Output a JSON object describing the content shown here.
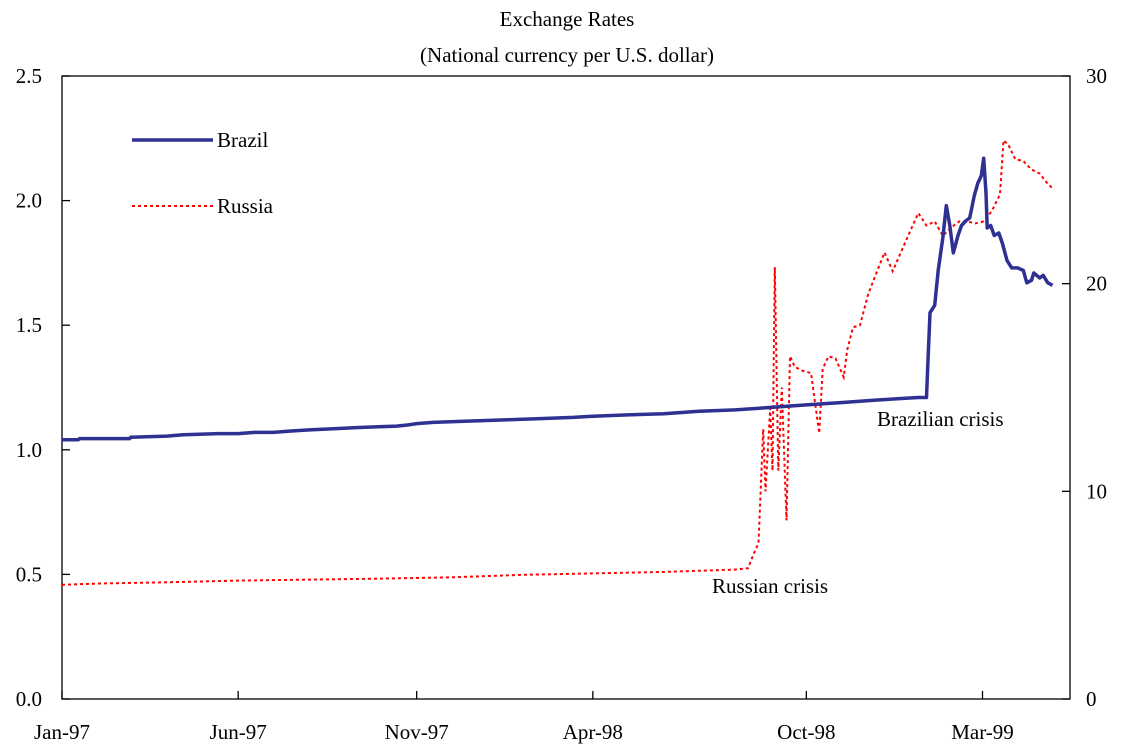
{
  "chart_data": {
    "type": "line",
    "title": "Exchange Rates",
    "subtitle": "(National currency per U.S. dollar)",
    "x_tick_labels": [
      "Jan-97",
      "Jun-97",
      "Nov-97",
      "Apr-98",
      "Oct-98",
      "Mar-99"
    ],
    "x_ticks": [
      "1997-01-01",
      "1997-06-01",
      "1997-11-01",
      "1998-04-01",
      "1998-10-01",
      "1999-03-01"
    ],
    "xlim": [
      "1997-01-01",
      "1999-05-15"
    ],
    "y_left": {
      "ylim": [
        0,
        2.5
      ],
      "ticks": [
        0.0,
        0.5,
        1.0,
        1.5,
        2.0,
        2.5
      ],
      "tick_labels": [
        "0.0",
        "0.5",
        "1.0",
        "1.5",
        "2.0",
        "2.5"
      ]
    },
    "y_right": {
      "ylim": [
        0,
        30
      ],
      "ticks": [
        0,
        10,
        20,
        30
      ],
      "tick_labels": [
        "0",
        "10",
        "20",
        "30"
      ]
    },
    "legend_position": "upper-left, inside plot",
    "series": [
      {
        "name": "Brazil",
        "axis": "left",
        "style": "solid",
        "color": "#2e3192",
        "points": [
          [
            "1997-01-01",
            1.04
          ],
          [
            "1997-01-15",
            1.04
          ],
          [
            "1997-01-16",
            1.045
          ],
          [
            "1997-02-28",
            1.045
          ],
          [
            "1997-03-01",
            1.05
          ],
          [
            "1997-04-01",
            1.055
          ],
          [
            "1997-04-15",
            1.06
          ],
          [
            "1997-05-15",
            1.065
          ],
          [
            "1997-06-01",
            1.065
          ],
          [
            "1997-06-15",
            1.07
          ],
          [
            "1997-07-01",
            1.07
          ],
          [
            "1997-07-15",
            1.075
          ],
          [
            "1997-08-01",
            1.08
          ],
          [
            "1997-08-15",
            1.083
          ],
          [
            "1997-09-15",
            1.09
          ],
          [
            "1997-10-15",
            1.095
          ],
          [
            "1997-10-25",
            1.1
          ],
          [
            "1997-11-01",
            1.105
          ],
          [
            "1997-11-15",
            1.11
          ],
          [
            "1997-12-15",
            1.115
          ],
          [
            "1998-01-15",
            1.12
          ],
          [
            "1998-02-15",
            1.125
          ],
          [
            "1998-03-15",
            1.13
          ],
          [
            "1998-04-01",
            1.135
          ],
          [
            "1998-05-01",
            1.14
          ],
          [
            "1998-06-01",
            1.145
          ],
          [
            "1998-07-01",
            1.155
          ],
          [
            "1998-08-01",
            1.16
          ],
          [
            "1998-09-01",
            1.17
          ],
          [
            "1998-10-01",
            1.18
          ],
          [
            "1998-11-01",
            1.19
          ],
          [
            "1998-12-01",
            1.2
          ],
          [
            "1999-01-05",
            1.21
          ],
          [
            "1999-01-12",
            1.21
          ],
          [
            "1999-01-13",
            1.33
          ],
          [
            "1999-01-15",
            1.55
          ],
          [
            "1999-01-19",
            1.58
          ],
          [
            "1999-01-22",
            1.72
          ],
          [
            "1999-01-26",
            1.85
          ],
          [
            "1999-01-29",
            1.98
          ],
          [
            "1999-02-01",
            1.9
          ],
          [
            "1999-02-04",
            1.79
          ],
          [
            "1999-02-08",
            1.86
          ],
          [
            "1999-02-11",
            1.9
          ],
          [
            "1999-02-15",
            1.92
          ],
          [
            "1999-02-18",
            1.93
          ],
          [
            "1999-02-22",
            2.02
          ],
          [
            "1999-02-25",
            2.07
          ],
          [
            "1999-02-28",
            2.1
          ],
          [
            "1999-03-02",
            2.17
          ],
          [
            "1999-03-04",
            2.03
          ],
          [
            "1999-03-05",
            1.89
          ],
          [
            "1999-03-08",
            1.9
          ],
          [
            "1999-03-11",
            1.86
          ],
          [
            "1999-03-15",
            1.87
          ],
          [
            "1999-03-18",
            1.83
          ],
          [
            "1999-03-22",
            1.76
          ],
          [
            "1999-03-26",
            1.73
          ],
          [
            "1999-03-31",
            1.73
          ],
          [
            "1999-04-05",
            1.72
          ],
          [
            "1999-04-08",
            1.67
          ],
          [
            "1999-04-12",
            1.68
          ],
          [
            "1999-04-14",
            1.71
          ],
          [
            "1999-04-19",
            1.69
          ],
          [
            "1999-04-22",
            1.7
          ],
          [
            "1999-04-26",
            1.67
          ],
          [
            "1999-04-30",
            1.66
          ]
        ]
      },
      {
        "name": "Russia",
        "axis": "right",
        "style": "dotted",
        "color": "#ff0000",
        "points": [
          [
            "1997-01-01",
            5.5
          ],
          [
            "1997-02-01",
            5.56
          ],
          [
            "1997-04-01",
            5.62
          ],
          [
            "1997-06-01",
            5.7
          ],
          [
            "1997-08-01",
            5.75
          ],
          [
            "1997-10-01",
            5.8
          ],
          [
            "1997-12-01",
            5.86
          ],
          [
            "1998-02-01",
            5.98
          ],
          [
            "1998-04-01",
            6.05
          ],
          [
            "1998-06-01",
            6.12
          ],
          [
            "1998-08-01",
            6.23
          ],
          [
            "1998-08-12",
            6.3
          ],
          [
            "1998-08-17",
            7.0
          ],
          [
            "1998-08-21",
            7.5
          ],
          [
            "1998-08-25",
            13.0
          ],
          [
            "1998-08-27",
            10.0
          ],
          [
            "1998-08-31",
            14.0
          ],
          [
            "1998-09-02",
            11.0
          ],
          [
            "1998-09-04",
            20.8
          ],
          [
            "1998-09-07",
            11.0
          ],
          [
            "1998-09-10",
            15.0
          ],
          [
            "1998-09-14",
            8.6
          ],
          [
            "1998-09-17",
            16.5
          ],
          [
            "1998-09-21",
            16.0
          ],
          [
            "1998-09-28",
            15.8
          ],
          [
            "1998-10-05",
            15.7
          ],
          [
            "1998-10-12",
            12.8
          ],
          [
            "1998-10-15",
            15.9
          ],
          [
            "1998-10-20",
            16.5
          ],
          [
            "1998-10-26",
            16.4
          ],
          [
            "1998-11-02",
            15.5
          ],
          [
            "1998-11-05",
            16.8
          ],
          [
            "1998-11-10",
            17.9
          ],
          [
            "1998-11-16",
            18.0
          ],
          [
            "1998-11-23",
            19.5
          ],
          [
            "1998-11-30",
            20.5
          ],
          [
            "1998-12-07",
            21.5
          ],
          [
            "1998-12-14",
            20.6
          ],
          [
            "1998-12-21",
            21.5
          ],
          [
            "1998-12-28",
            22.4
          ],
          [
            "1999-01-05",
            23.4
          ],
          [
            "1999-01-12",
            22.8
          ],
          [
            "1999-01-19",
            23.0
          ],
          [
            "1999-01-26",
            22.3
          ],
          [
            "1999-02-02",
            22.7
          ],
          [
            "1999-02-09",
            23.0
          ],
          [
            "1999-02-16",
            23.0
          ],
          [
            "1999-02-23",
            22.9
          ],
          [
            "1999-03-02",
            23.0
          ],
          [
            "1999-03-09",
            23.5
          ],
          [
            "1999-03-16",
            24.3
          ],
          [
            "1999-03-19",
            26.9
          ],
          [
            "1999-03-23",
            26.7
          ],
          [
            "1999-03-29",
            26.0
          ],
          [
            "1999-04-05",
            25.9
          ],
          [
            "1999-04-12",
            25.5
          ],
          [
            "1999-04-19",
            25.3
          ],
          [
            "1999-04-26",
            24.8
          ],
          [
            "1999-04-30",
            24.6
          ]
        ]
      }
    ],
    "annotations": [
      {
        "text": "Russian crisis",
        "x": "1998-09-01",
        "y_right": 5.0
      },
      {
        "text": "Brazilian crisis",
        "x": "1998-12-20",
        "y_right": 13.0
      }
    ]
  }
}
